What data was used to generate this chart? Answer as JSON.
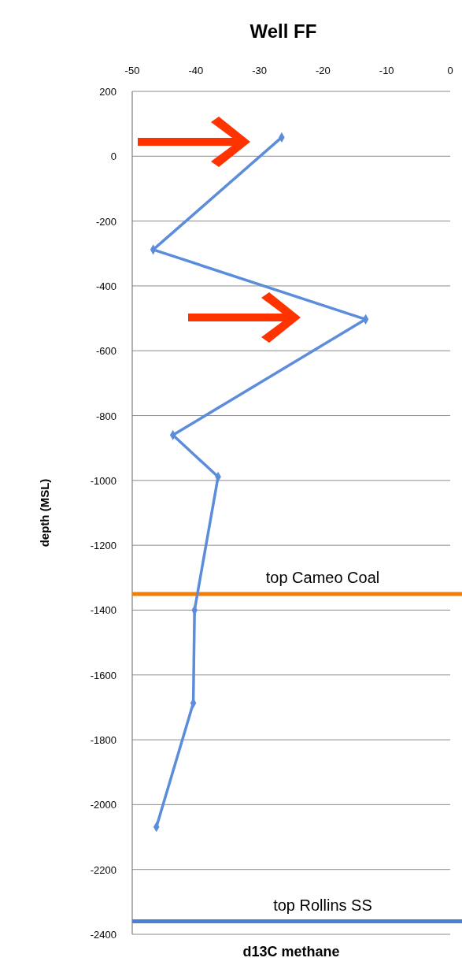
{
  "chart_data": {
    "type": "line",
    "title": "Well FF",
    "xlabel": "d13C methane",
    "ylabel": "depth (MSL)",
    "xlim": [
      -50,
      0
    ],
    "xticks": [
      -50,
      -40,
      -30,
      -20,
      -10,
      0
    ],
    "ylim": [
      -2400,
      200
    ],
    "yticks": [
      200,
      0,
      -200,
      -400,
      -600,
      -800,
      -1000,
      -1200,
      -1400,
      -1600,
      -1800,
      -2000,
      -2200,
      -2400
    ],
    "grid": "y",
    "marker": "diamond",
    "line_style": "solid",
    "series": [
      {
        "color": "#5b8ddb",
        "x": [
          -26.5,
          -46.7,
          -13.3,
          -43.6,
          -36.5,
          -40.2,
          -40.4,
          -46.2
        ],
        "values": [
          58,
          -288,
          -503,
          -860,
          -989,
          -1400,
          -1687,
          -2069
        ]
      }
    ],
    "ref_lines": [
      {
        "axis": "y",
        "value": -1350,
        "label": "top Cameo Coal",
        "color": "#f07f09"
      },
      {
        "axis": "y",
        "value": -2360,
        "label": "top Rollins SS",
        "color": "#4a7fd6"
      }
    ]
  }
}
